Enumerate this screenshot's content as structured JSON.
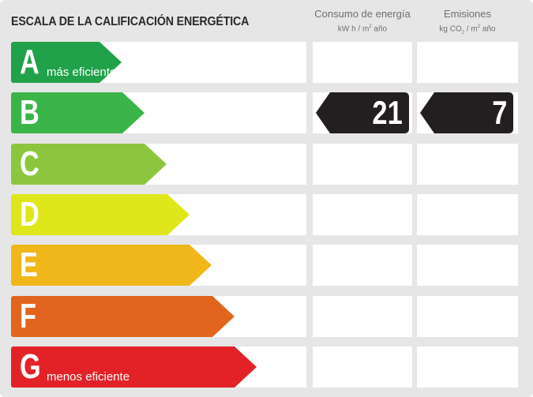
{
  "title": "ESCALA DE LA CALIFICACIÓN ENERGÉTICA",
  "columns": {
    "energy": {
      "heading": "Consumo de energía",
      "unit_pre": "kW h / m",
      "unit_sup": "2",
      "unit_post": " año"
    },
    "emissions": {
      "heading": "Emisiones",
      "unit_pre": "kg CO",
      "unit_sub": "2",
      "unit_mid": " / m",
      "unit_sup": "2",
      "unit_post": " año"
    }
  },
  "classes": [
    {
      "letter": "A",
      "label": "más eficiente",
      "color": "#21a14a"
    },
    {
      "letter": "B",
      "label": "",
      "color": "#3bb44a"
    },
    {
      "letter": "C",
      "label": "",
      "color": "#8cc63e"
    },
    {
      "letter": "D",
      "label": "",
      "color": "#dfe71a"
    },
    {
      "letter": "E",
      "label": "",
      "color": "#efb71a"
    },
    {
      "letter": "F",
      "label": "",
      "color": "#e1651f"
    },
    {
      "letter": "G",
      "label": "menos eficiente",
      "color": "#e32228"
    }
  ],
  "rating": {
    "class": "B",
    "energy_value": "21",
    "emissions_value": "7",
    "marker_color": "#231f20"
  }
}
